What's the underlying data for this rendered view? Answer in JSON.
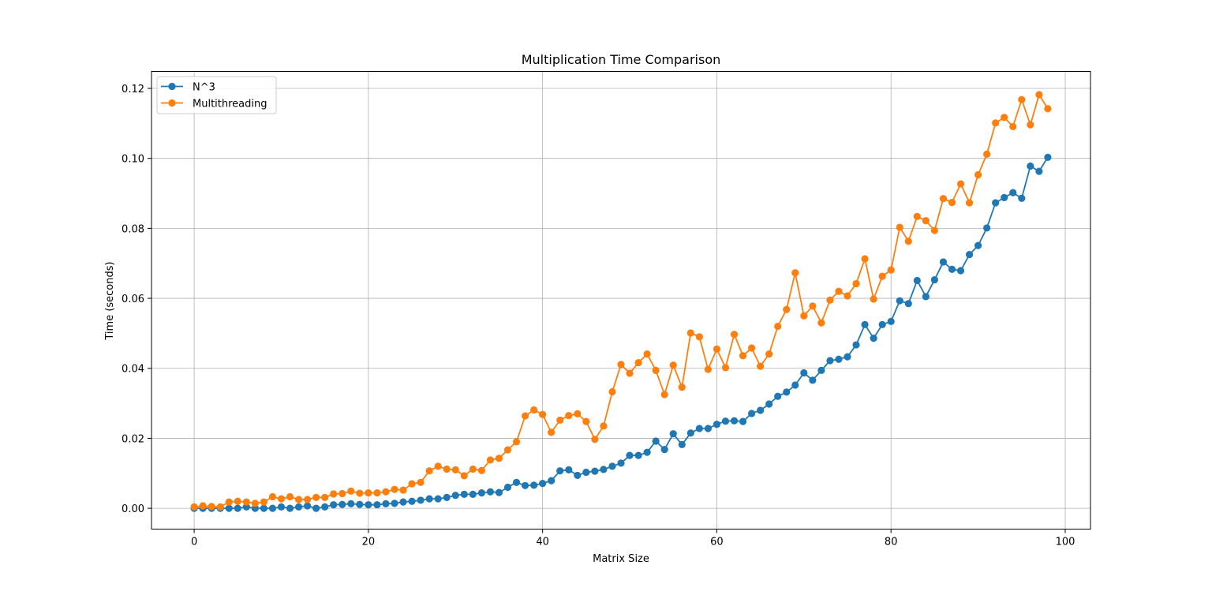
{
  "chart_data": {
    "type": "line",
    "title": "Multiplication Time Comparison",
    "xlabel": "Matrix Size",
    "ylabel": "Time (seconds)",
    "xlim": [
      -4.9,
      102.9
    ],
    "ylim": [
      -0.00595,
      0.12485
    ],
    "xticks": [
      0,
      20,
      40,
      60,
      80,
      100
    ],
    "xtick_labels": [
      "0",
      "20",
      "40",
      "60",
      "80",
      "100"
    ],
    "yticks": [
      0.0,
      0.02,
      0.04,
      0.06,
      0.08,
      0.1,
      0.12
    ],
    "ytick_labels": [
      "0.00",
      "0.02",
      "0.04",
      "0.06",
      "0.08",
      "0.10",
      "0.12"
    ],
    "grid": true,
    "legend_position": "top-left",
    "x": [
      0,
      1,
      2,
      3,
      4,
      5,
      6,
      7,
      8,
      9,
      10,
      11,
      12,
      13,
      14,
      15,
      16,
      17,
      18,
      19,
      20,
      21,
      22,
      23,
      24,
      25,
      26,
      27,
      28,
      29,
      30,
      31,
      32,
      33,
      34,
      35,
      36,
      37,
      38,
      39,
      40,
      41,
      42,
      43,
      44,
      45,
      46,
      47,
      48,
      49,
      50,
      51,
      52,
      53,
      54,
      55,
      56,
      57,
      58,
      59,
      60,
      61,
      62,
      63,
      64,
      65,
      66,
      67,
      68,
      69,
      70,
      71,
      72,
      73,
      74,
      75,
      76,
      77,
      78,
      79,
      80,
      81,
      82,
      83,
      84,
      85,
      86,
      87,
      88,
      89,
      90,
      91,
      92,
      93,
      94,
      95,
      96,
      97,
      98
    ],
    "series": [
      {
        "name": "N^3",
        "color": "#1f77b4",
        "values": [
          0.0,
          0.0,
          0.0,
          0.0,
          0.0,
          0.0,
          0.0004,
          0.0,
          0.0,
          0.0,
          0.0004,
          0.0,
          0.0004,
          0.0007,
          0.0,
          0.0004,
          0.001,
          0.0011,
          0.0013,
          0.0011,
          0.001,
          0.001,
          0.0013,
          0.0014,
          0.0018,
          0.002,
          0.0023,
          0.0027,
          0.0027,
          0.0031,
          0.0037,
          0.004,
          0.004,
          0.0044,
          0.0047,
          0.0045,
          0.006,
          0.0074,
          0.0065,
          0.0066,
          0.0071,
          0.0079,
          0.0107,
          0.011,
          0.0094,
          0.0103,
          0.0106,
          0.0111,
          0.012,
          0.0129,
          0.0151,
          0.0151,
          0.016,
          0.0192,
          0.0168,
          0.0213,
          0.0182,
          0.0215,
          0.0228,
          0.0228,
          0.024,
          0.0249,
          0.025,
          0.0248,
          0.0271,
          0.028,
          0.0298,
          0.032,
          0.0332,
          0.0352,
          0.0387,
          0.0366,
          0.0394,
          0.0422,
          0.0426,
          0.0433,
          0.0467,
          0.0525,
          0.0486,
          0.0525,
          0.0534,
          0.0593,
          0.0585,
          0.0651,
          0.0605,
          0.0653,
          0.0704,
          0.0683,
          0.0679,
          0.0725,
          0.0751,
          0.0801,
          0.0873,
          0.0888,
          0.0902,
          0.0886,
          0.0978,
          0.0963,
          0.1003
        ]
      },
      {
        "name": "Multithreading",
        "color": "#ff7f0e",
        "values": [
          0.0004,
          0.0007,
          0.0005,
          0.0004,
          0.0018,
          0.002,
          0.0018,
          0.0014,
          0.0018,
          0.0033,
          0.0027,
          0.0033,
          0.0025,
          0.0025,
          0.0031,
          0.0031,
          0.0041,
          0.0042,
          0.0049,
          0.0043,
          0.0044,
          0.0044,
          0.0047,
          0.0054,
          0.0052,
          0.007,
          0.0074,
          0.0107,
          0.012,
          0.0112,
          0.011,
          0.0093,
          0.0112,
          0.0108,
          0.0138,
          0.0143,
          0.0167,
          0.019,
          0.0264,
          0.0281,
          0.0268,
          0.0217,
          0.0252,
          0.0265,
          0.027,
          0.0248,
          0.0197,
          0.0235,
          0.0333,
          0.0411,
          0.0386,
          0.0416,
          0.0441,
          0.0394,
          0.0325,
          0.0409,
          0.0346,
          0.0501,
          0.049,
          0.0397,
          0.0455,
          0.0402,
          0.0497,
          0.0436,
          0.0458,
          0.0406,
          0.0441,
          0.052,
          0.0568,
          0.0673,
          0.055,
          0.0578,
          0.053,
          0.0595,
          0.062,
          0.0607,
          0.0642,
          0.0713,
          0.0598,
          0.0663,
          0.0681,
          0.0803,
          0.0763,
          0.0834,
          0.0822,
          0.0794,
          0.0885,
          0.0874,
          0.0927,
          0.0873,
          0.0953,
          0.1012,
          0.1101,
          0.1117,
          0.1091,
          0.1168,
          0.1096,
          0.1182,
          0.1142
        ]
      }
    ]
  }
}
